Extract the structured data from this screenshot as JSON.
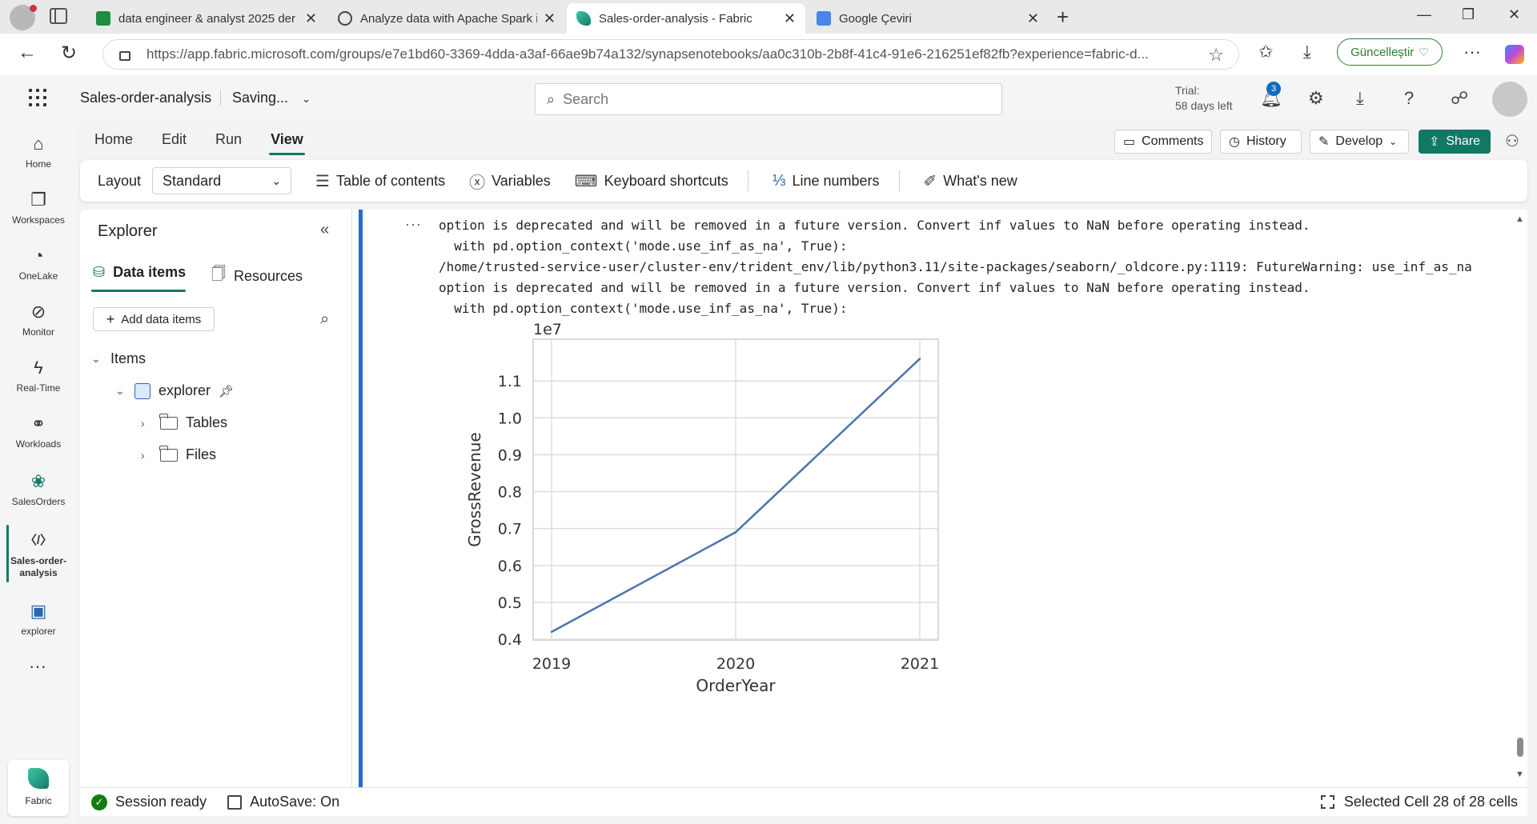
{
  "browser": {
    "tabs": [
      {
        "title": "data engineer & analyst 2025 der",
        "icon": "sheets-icon"
      },
      {
        "title": "Analyze data with Apache Spark in",
        "icon": "globe-icon"
      },
      {
        "title": "Sales-order-analysis - Fabric",
        "icon": "fabric-icon"
      },
      {
        "title": "Google Çeviri",
        "icon": "translate-icon"
      }
    ],
    "url": "https://app.fabric.microsoft.com/groups/e7e1bd60-3369-4dda-a3af-66ae9b74a132/synapsenotebooks/aa0c310b-2b8f-41c4-91e6-216251ef82fb?experience=fabric-d...",
    "update_label": "Güncelleştir"
  },
  "header": {
    "notebook_name": "Sales-order-analysis",
    "save_status": "Saving...",
    "search_placeholder": "Search",
    "trial_line1": "Trial:",
    "trial_line2": "58 days left",
    "notification_count": "3"
  },
  "rail": {
    "items": [
      {
        "label": "Home",
        "icon": "home-icon"
      },
      {
        "label": "Workspaces",
        "icon": "workspaces-icon"
      },
      {
        "label": "OneLake",
        "icon": "onelake-icon"
      },
      {
        "label": "Monitor",
        "icon": "monitor-icon"
      },
      {
        "label": "Real-Time",
        "icon": "real-time-icon"
      },
      {
        "label": "Workloads",
        "icon": "workloads-icon"
      },
      {
        "label": "SalesOrders",
        "icon": "workspace-icon"
      },
      {
        "label": "Sales-order-analysis",
        "icon": "notebook-icon"
      },
      {
        "label": "explorer",
        "icon": "lakehouse-icon"
      }
    ],
    "fabric_label": "Fabric",
    "accent": "#117865"
  },
  "ribbon": {
    "tabs": [
      "Home",
      "Edit",
      "Run",
      "View"
    ],
    "active_tab": "View",
    "comments_label": "Comments",
    "history_label": "History",
    "develop_label": "Develop",
    "share_label": "Share",
    "layout_label": "Layout",
    "layout_value": "Standard",
    "toolbar_items": [
      "Table of contents",
      "Variables",
      "Keyboard shortcuts",
      "Line numbers",
      "What's new"
    ]
  },
  "explorer": {
    "title": "Explorer",
    "tab_data": "Data items",
    "tab_resources": "Resources",
    "add_label": "Add data items",
    "items_label": "Items",
    "lakehouse": "explorer",
    "folders": [
      "Tables",
      "Files"
    ]
  },
  "output": {
    "lines": [
      "option is deprecated and will be removed in a future version. Convert inf values to NaN before operating instead.",
      "  with pd.option_context('mode.use_inf_as_na', True):",
      "/home/trusted-service-user/cluster-env/trident_env/lib/python3.11/site-packages/seaborn/_oldcore.py:1119: FutureWarning: use_inf_as_na",
      "option is deprecated and will be removed in a future version. Convert inf values to NaN before operating instead.",
      "  with pd.option_context('mode.use_inf_as_na', True):"
    ]
  },
  "chart_data": {
    "type": "line",
    "x": [
      2019,
      2020,
      2021
    ],
    "series": [
      {
        "values": [
          4200000,
          6900000,
          11600000
        ],
        "color": "#4c72b0"
      }
    ],
    "xlabel": "OrderYear",
    "ylabel": "GrossRevenue",
    "scale_label": "1e7",
    "xticks": [
      "2019",
      "2020",
      "2021"
    ],
    "yticks": [
      "0.4",
      "0.5",
      "0.6",
      "0.7",
      "0.8",
      "0.9",
      "1.0",
      "1.1"
    ],
    "ylim": [
      3980000,
      12130000
    ],
    "xlim": [
      2018.9,
      2021.1
    ],
    "grid": true
  },
  "status": {
    "session": "Session ready",
    "autosave": "AutoSave: On",
    "selection": "Selected Cell 28 of 28 cells"
  }
}
